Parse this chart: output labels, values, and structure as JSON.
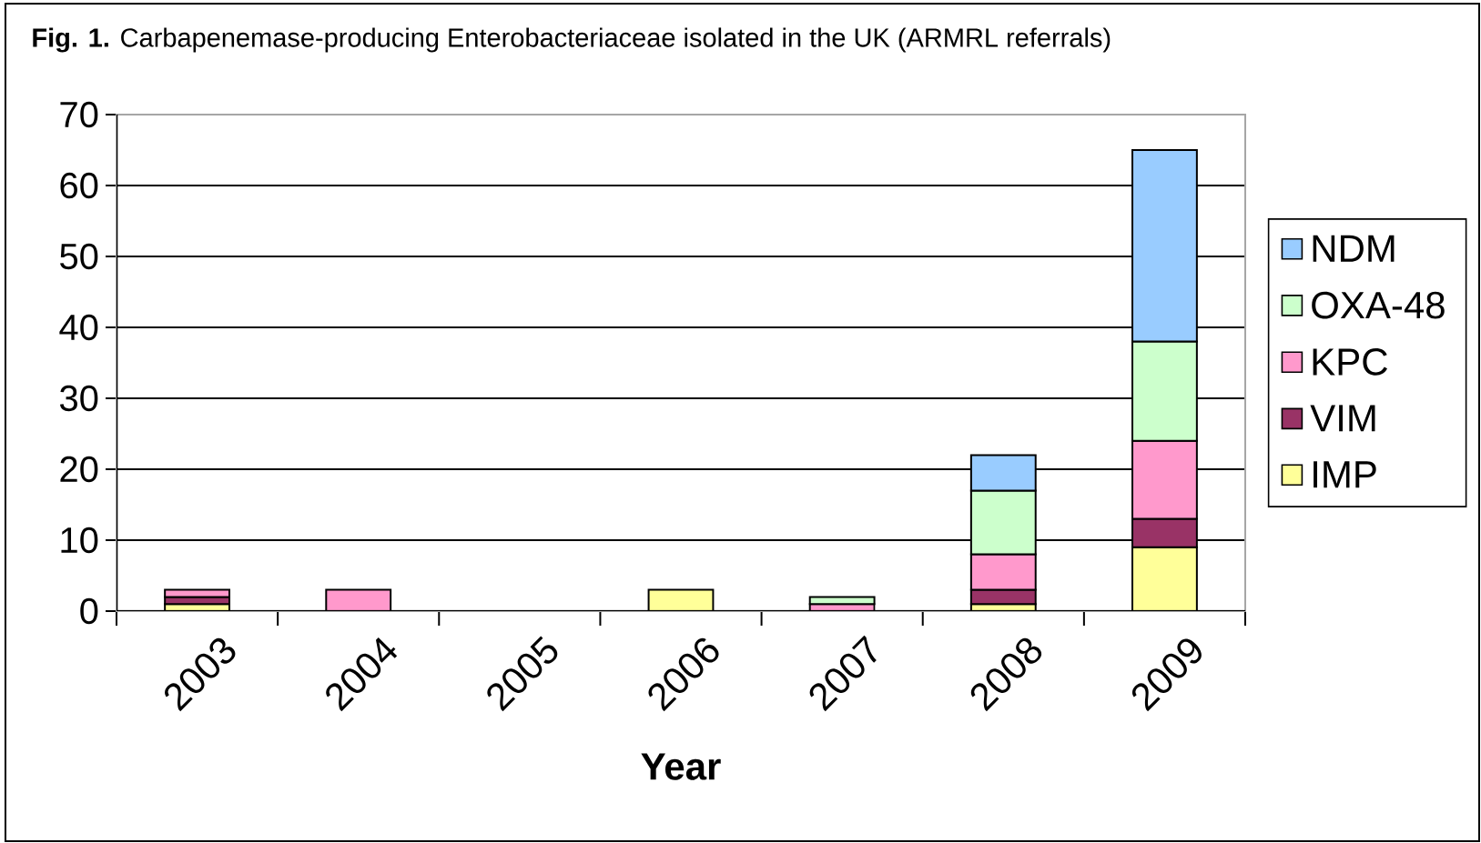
{
  "chart_data": {
    "type": "bar",
    "stacked": true,
    "title": "**Fig. 1.** Carbapenemase-producing Enterobacteriaceae isolated in the UK (ARMRL referrals)",
    "xlabel": "Year",
    "categories": [
      "2003",
      "2004",
      "2005",
      "2006",
      "2007",
      "2008",
      "2009"
    ],
    "series": [
      {
        "name": "IMP",
        "color": "#ffff99",
        "values": [
          1,
          0,
          0,
          3,
          0,
          1,
          9
        ]
      },
      {
        "name": "VIM",
        "color": "#993366",
        "values": [
          1,
          0,
          0,
          0,
          0,
          2,
          4
        ]
      },
      {
        "name": "KPC",
        "color": "#ff99cc",
        "values": [
          1,
          3,
          0,
          0,
          1,
          5,
          11
        ]
      },
      {
        "name": "OXA-48",
        "color": "#ccffcc",
        "values": [
          0,
          0,
          0,
          0,
          1,
          9,
          14
        ]
      },
      {
        "name": "NDM",
        "color": "#99ccff",
        "values": [
          0,
          0,
          0,
          0,
          0,
          5,
          27
        ]
      }
    ],
    "ylim": [
      0,
      70
    ],
    "yticks": [
      0,
      10,
      20,
      30,
      40,
      50,
      60,
      70
    ],
    "grid": "y",
    "legend": "right"
  }
}
